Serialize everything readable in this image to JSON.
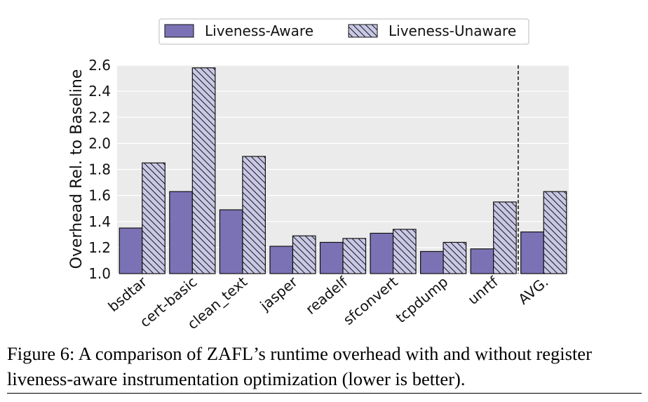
{
  "chart_data": {
    "type": "bar",
    "categories": [
      "bsdtar",
      "cert-basic",
      "clean_text",
      "jasper",
      "readelf",
      "sfconvert",
      "tcpdump",
      "unrtf",
      "AVG."
    ],
    "series": [
      {
        "name": "Liveness-Aware",
        "values": [
          1.35,
          1.63,
          1.49,
          1.21,
          1.24,
          1.31,
          1.17,
          1.19,
          1.32
        ],
        "color": "#7b72b6",
        "pattern": "solid"
      },
      {
        "name": "Liveness-Unaware",
        "values": [
          1.85,
          2.58,
          1.9,
          1.29,
          1.27,
          1.34,
          1.24,
          1.55,
          1.63
        ],
        "color": "#c9c8e6",
        "pattern": "diagonal-hatch"
      }
    ],
    "ylabel": "Overhead Rel. to Baseline",
    "xlabel": "",
    "ylim": [
      1.0,
      2.6
    ],
    "yticks": [
      "1.0",
      "1.2",
      "1.4",
      "1.6",
      "1.8",
      "2.0",
      "2.2",
      "2.4",
      "2.6"
    ],
    "grid": true,
    "background": "#ebebeb",
    "legend_position": "top-center",
    "separator": "dashed line before AVG."
  },
  "caption": {
    "prefix": "Figure 6: A comparison of ",
    "name_first": "Z",
    "name_rest": "AFL",
    "suffix": "’s runtime overhead with and without register liveness-aware instrumentation optimization (lower is better)."
  }
}
